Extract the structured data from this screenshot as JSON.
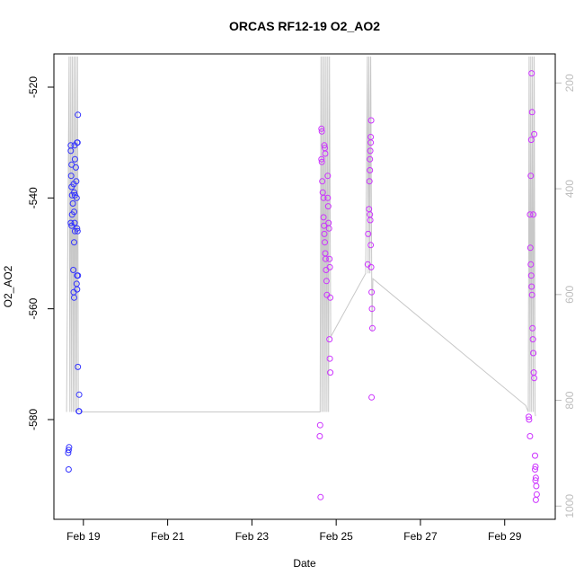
{
  "chart_data": {
    "type": "scatter",
    "title": "ORCAS RF12-19 O2_AO2",
    "xlabel": "Date",
    "ylabel": "O2_AO2",
    "x_tick_labels": [
      "Feb 19",
      "Feb 21",
      "Feb 23",
      "Feb 25",
      "Feb 27",
      "Feb 29"
    ],
    "x_tick_days": [
      19,
      21,
      23,
      25,
      27,
      29
    ],
    "xlim": [
      18.3,
      30.2
    ],
    "y_ticks": [
      -520,
      -540,
      -560,
      -580
    ],
    "ylim": [
      -598,
      -514
    ],
    "y2_ticks": [
      200,
      400,
      600,
      800,
      1000
    ],
    "y2lim": [
      1025,
      145
    ],
    "grid": false,
    "series": [
      {
        "color": "#3333ff",
        "style": "points",
        "points": [
          [
            18.7,
            -530.5
          ],
          [
            18.7,
            -531.5
          ],
          [
            18.72,
            -534
          ],
          [
            18.71,
            -536
          ],
          [
            18.72,
            -538
          ],
          [
            18.73,
            -539.5
          ],
          [
            18.7,
            -544.5
          ],
          [
            18.72,
            -545
          ],
          [
            18.73,
            -543
          ],
          [
            18.75,
            -541
          ],
          [
            18.77,
            -537.5
          ],
          [
            18.78,
            -539
          ],
          [
            18.8,
            -539.5
          ],
          [
            18.79,
            -530.5
          ],
          [
            18.8,
            -533
          ],
          [
            18.78,
            -542.5
          ],
          [
            18.79,
            -544.5
          ],
          [
            18.8,
            -546
          ],
          [
            18.78,
            -548
          ],
          [
            18.76,
            -553
          ],
          [
            18.77,
            -557
          ],
          [
            18.78,
            -558
          ],
          [
            18.82,
            -534.5
          ],
          [
            18.83,
            -537
          ],
          [
            18.84,
            -540
          ],
          [
            18.85,
            -530
          ],
          [
            18.86,
            -530
          ],
          [
            18.87,
            -525
          ],
          [
            18.85,
            -545.5
          ],
          [
            18.86,
            -546
          ],
          [
            18.85,
            -554
          ],
          [
            18.87,
            -554
          ],
          [
            18.84,
            -555.5
          ],
          [
            18.85,
            -556.5
          ],
          [
            18.87,
            -570.5
          ],
          [
            18.9,
            -575.5
          ],
          [
            18.89,
            -578.5
          ],
          [
            18.9,
            -578.5
          ],
          [
            18.66,
            -585
          ],
          [
            18.65,
            -585.5
          ],
          [
            18.64,
            -586
          ],
          [
            18.65,
            -589
          ]
        ]
      },
      {
        "color": "#cc33ff",
        "style": "points",
        "points": [
          [
            24.62,
            -581
          ],
          [
            24.61,
            -583
          ],
          [
            24.63,
            -594
          ],
          [
            24.65,
            -527.5
          ],
          [
            24.66,
            -528
          ],
          [
            24.65,
            -533
          ],
          [
            24.66,
            -533.5
          ],
          [
            24.67,
            -537
          ],
          [
            24.68,
            -539
          ],
          [
            24.7,
            -540
          ],
          [
            24.72,
            -530.5
          ],
          [
            24.73,
            -531
          ],
          [
            24.74,
            -532
          ],
          [
            24.7,
            -543.5
          ],
          [
            24.71,
            -545
          ],
          [
            24.72,
            -546.5
          ],
          [
            24.73,
            -548
          ],
          [
            24.74,
            -550
          ],
          [
            24.75,
            -551
          ],
          [
            24.76,
            -553
          ],
          [
            24.77,
            -555
          ],
          [
            24.78,
            -557.5
          ],
          [
            24.8,
            -536
          ],
          [
            24.8,
            -540
          ],
          [
            24.81,
            -541.5
          ],
          [
            24.82,
            -544.5
          ],
          [
            24.83,
            -545.5
          ],
          [
            24.84,
            -551
          ],
          [
            24.85,
            -552.5
          ],
          [
            24.86,
            -558
          ],
          [
            24.84,
            -565.5
          ],
          [
            24.85,
            -569
          ],
          [
            24.86,
            -571.5
          ],
          [
            25.75,
            -552
          ],
          [
            25.76,
            -546.5
          ],
          [
            25.78,
            -542
          ],
          [
            25.79,
            -537
          ],
          [
            25.8,
            -535
          ],
          [
            25.8,
            -533
          ],
          [
            25.81,
            -531.5
          ],
          [
            25.82,
            -530
          ],
          [
            25.82,
            -529
          ],
          [
            25.83,
            -526
          ],
          [
            25.8,
            -543
          ],
          [
            25.81,
            -544
          ],
          [
            25.82,
            -548.5
          ],
          [
            25.83,
            -552.5
          ],
          [
            25.84,
            -557
          ],
          [
            25.85,
            -560
          ],
          [
            25.86,
            -563.5
          ],
          [
            25.84,
            -576
          ],
          [
            29.57,
            -579.5
          ],
          [
            29.58,
            -580
          ],
          [
            29.6,
            -583
          ],
          [
            29.63,
            -529.5
          ],
          [
            29.64,
            -517.5
          ],
          [
            29.65,
            -524.5
          ],
          [
            29.62,
            -536
          ],
          [
            29.6,
            -543
          ],
          [
            29.61,
            -549
          ],
          [
            29.62,
            -552
          ],
          [
            29.63,
            -554
          ],
          [
            29.64,
            -556
          ],
          [
            29.65,
            -557.5
          ],
          [
            29.66,
            -563.5
          ],
          [
            29.67,
            -565.5
          ],
          [
            29.68,
            -568
          ],
          [
            29.69,
            -571.5
          ],
          [
            29.7,
            -572.5
          ],
          [
            29.68,
            -543
          ],
          [
            29.7,
            -528.5
          ],
          [
            29.72,
            -586.5
          ],
          [
            29.73,
            -588.5
          ],
          [
            29.74,
            -590.5
          ],
          [
            29.75,
            -592
          ],
          [
            29.76,
            -593.5
          ],
          [
            29.74,
            -594.5
          ],
          [
            29.72,
            -589
          ],
          [
            29.73,
            -591
          ]
        ]
      },
      {
        "color": "#c8c8c8",
        "style": "line",
        "axis": "right",
        "points": [
          [
            18.6,
            822
          ],
          [
            18.66,
            150
          ],
          [
            18.68,
            822
          ],
          [
            18.7,
            150
          ],
          [
            18.72,
            822
          ],
          [
            18.74,
            150
          ],
          [
            18.76,
            822
          ],
          [
            18.78,
            150
          ],
          [
            18.8,
            822
          ],
          [
            18.82,
            150
          ],
          [
            18.84,
            822
          ],
          [
            18.86,
            150
          ],
          [
            18.88,
            820
          ],
          [
            18.95,
            822
          ],
          [
            24.62,
            822
          ],
          [
            24.64,
            150
          ],
          [
            24.66,
            822
          ],
          [
            24.68,
            150
          ],
          [
            24.7,
            822
          ],
          [
            24.72,
            150
          ],
          [
            24.74,
            822
          ],
          [
            24.76,
            150
          ],
          [
            24.78,
            822
          ],
          [
            24.8,
            150
          ],
          [
            24.82,
            822
          ],
          [
            24.84,
            150
          ],
          [
            24.87,
            680
          ],
          [
            25.7,
            560
          ],
          [
            25.74,
            150
          ],
          [
            25.76,
            560
          ],
          [
            25.78,
            150
          ],
          [
            25.8,
            560
          ],
          [
            25.82,
            150
          ],
          [
            25.85,
            670
          ],
          [
            25.87,
            570
          ],
          [
            29.5,
            810
          ],
          [
            29.56,
            822
          ],
          [
            29.58,
            150
          ],
          [
            29.6,
            822
          ],
          [
            29.62,
            150
          ],
          [
            29.64,
            822
          ],
          [
            29.66,
            150
          ],
          [
            29.68,
            822
          ],
          [
            29.7,
            150
          ],
          [
            29.72,
            822
          ],
          [
            29.73,
            830
          ]
        ]
      }
    ]
  }
}
